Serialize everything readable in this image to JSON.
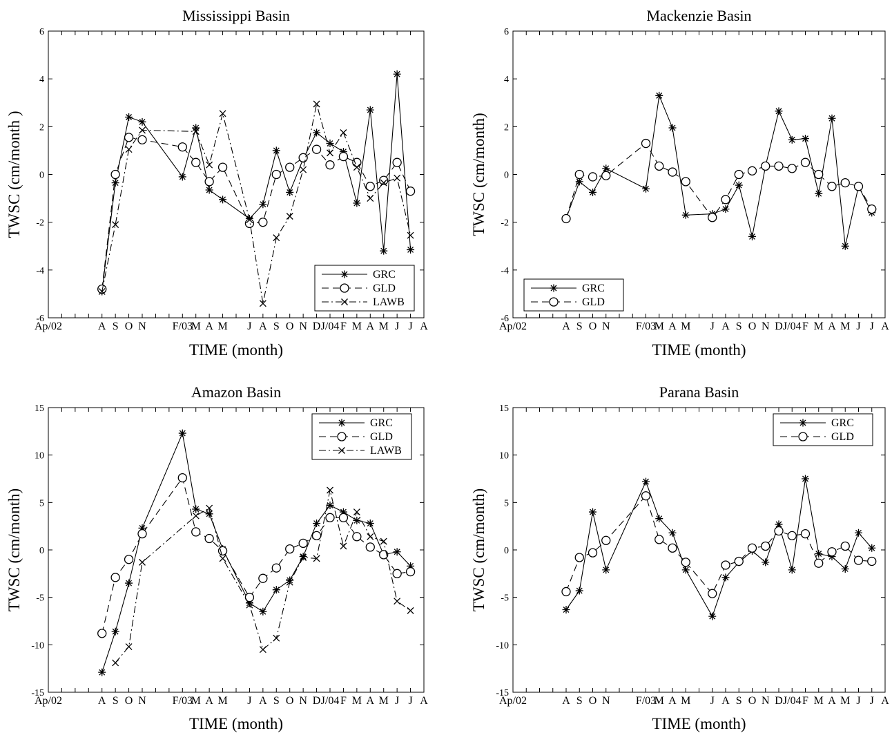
{
  "month_labels": [
    "Ap/02",
    "",
    "",
    "",
    "A",
    "S",
    "O",
    "N",
    "",
    "",
    "F/03",
    "M",
    "A",
    "M",
    "",
    "J",
    "A",
    "S",
    "O",
    "N",
    "D",
    "J/04",
    "F",
    "M",
    "A",
    "M",
    "J",
    "J",
    "A"
  ],
  "series_styles": {
    "GRC": {
      "dash": "",
      "marker": "asterisk"
    },
    "GLD": {
      "dash": "10,6",
      "marker": "circle"
    },
    "LAWB": {
      "dash": "10,4,2,4",
      "marker": "x"
    }
  },
  "chart_data": [
    {
      "type": "line",
      "title": "Mississippi Basin",
      "xlabel": "TIME (month)",
      "ylabel": "TWSC (cm/month )",
      "ylim": [
        -6,
        6
      ],
      "yticks": [
        -6,
        -4,
        -2,
        0,
        2,
        4,
        6
      ],
      "legend": [
        "GRC",
        "GLD",
        "LAWB"
      ],
      "legend_position": "bottom-right",
      "series": [
        {
          "name": "GRC",
          "x": [
            4,
            5,
            6,
            7,
            10,
            11,
            12,
            13,
            15,
            16,
            17,
            18,
            19,
            20,
            21,
            22,
            23,
            24,
            25,
            26,
            27
          ],
          "y": [
            -4.9,
            -0.35,
            2.4,
            2.2,
            -0.1,
            1.95,
            -0.65,
            -1.05,
            -1.85,
            -1.25,
            1.0,
            -0.75,
            0.65,
            1.75,
            1.3,
            0.95,
            -1.2,
            2.7,
            -3.2,
            4.2,
            -3.15
          ]
        },
        {
          "name": "GLD",
          "x": [
            4,
            5,
            6,
            7,
            10,
            11,
            12,
            13,
            15,
            16,
            17,
            18,
            19,
            20,
            21,
            22,
            23,
            24,
            25,
            26,
            27
          ],
          "y": [
            -4.8,
            0.0,
            1.55,
            1.45,
            1.15,
            0.5,
            -0.3,
            0.3,
            -2.05,
            -2.0,
            0.0,
            0.3,
            0.7,
            1.05,
            0.4,
            0.75,
            0.5,
            -0.5,
            -0.25,
            0.5,
            -0.7
          ]
        },
        {
          "name": "LAWB",
          "x": [
            4,
            5,
            6,
            7,
            11,
            12,
            13,
            15,
            16,
            17,
            18,
            19,
            20,
            21,
            22,
            23,
            24,
            25,
            26,
            27
          ],
          "y": [
            -4.9,
            -2.1,
            1.05,
            1.85,
            1.8,
            0.4,
            2.55,
            -1.9,
            -5.4,
            -2.65,
            -1.75,
            0.2,
            2.95,
            0.9,
            1.75,
            0.3,
            -1.0,
            -0.35,
            -0.15,
            -2.55
          ]
        }
      ]
    },
    {
      "type": "line",
      "title": "Mackenzie Basin",
      "xlabel": "TIME (month)",
      "ylabel": "TWSC (cm/month)",
      "ylim": [
        -6,
        6
      ],
      "yticks": [
        -6,
        -4,
        -2,
        0,
        2,
        4,
        6
      ],
      "legend": [
        "GRC",
        "GLD"
      ],
      "legend_position": "bottom-left",
      "series": [
        {
          "name": "GRC",
          "x": [
            4,
            5,
            6,
            7,
            10,
            11,
            12,
            13,
            15,
            16,
            17,
            18,
            19,
            20,
            21,
            22,
            23,
            24,
            25,
            26,
            27
          ],
          "y": [
            -1.85,
            -0.3,
            -0.75,
            0.25,
            -0.6,
            3.3,
            1.95,
            -1.7,
            -1.65,
            -1.45,
            -0.45,
            -2.6,
            0.35,
            2.65,
            1.45,
            1.5,
            -0.8,
            2.35,
            -3.0,
            -0.5,
            -1.6
          ]
        },
        {
          "name": "GLD",
          "x": [
            4,
            5,
            6,
            7,
            10,
            11,
            12,
            13,
            15,
            16,
            17,
            18,
            19,
            20,
            21,
            22,
            23,
            24,
            25,
            26,
            27
          ],
          "y": [
            -1.85,
            0.0,
            -0.1,
            -0.05,
            1.3,
            0.35,
            0.1,
            -0.3,
            -1.8,
            -1.05,
            0.0,
            0.15,
            0.35,
            0.35,
            0.25,
            0.5,
            0.0,
            -0.5,
            -0.35,
            -0.5,
            -1.45
          ]
        }
      ]
    },
    {
      "type": "line",
      "title": "Amazon Basin",
      "xlabel": "TIME (month)",
      "ylabel": "TWSC (cm/month)",
      "ylim": [
        -15,
        15
      ],
      "yticks": [
        -15,
        -10,
        -5,
        0,
        5,
        10,
        15
      ],
      "legend": [
        "GRC",
        "GLD",
        "LAWB"
      ],
      "legend_position": "top-right",
      "series": [
        {
          "name": "GRC",
          "x": [
            4,
            5,
            6,
            7,
            10,
            11,
            12,
            13,
            15,
            16,
            17,
            18,
            19,
            20,
            21,
            22,
            23,
            24,
            25,
            26,
            27
          ],
          "y": [
            -12.9,
            -8.6,
            -3.5,
            2.3,
            12.3,
            4.3,
            3.8,
            0.1,
            -5.6,
            -6.5,
            -4.2,
            -3.2,
            -0.7,
            2.8,
            4.7,
            4.0,
            3.1,
            2.8,
            -0.5,
            -0.2,
            -1.7
          ]
        },
        {
          "name": "GLD",
          "x": [
            4,
            5,
            6,
            7,
            10,
            11,
            12,
            13,
            15,
            16,
            17,
            18,
            19,
            20,
            21,
            22,
            23,
            24,
            25,
            26,
            27
          ],
          "y": [
            -8.8,
            -2.9,
            -1.0,
            1.7,
            7.6,
            1.9,
            1.2,
            -0.1,
            -5.0,
            -3.0,
            -1.9,
            0.1,
            0.7,
            1.5,
            3.4,
            3.4,
            1.4,
            0.3,
            -0.5,
            -2.5,
            -2.3
          ]
        },
        {
          "name": "LAWB",
          "x": [
            5,
            6,
            7,
            11,
            12,
            13,
            15,
            16,
            17,
            18,
            19,
            20,
            21,
            22,
            23,
            24,
            25,
            26,
            27
          ],
          "y": [
            -11.9,
            -10.2,
            -1.3,
            3.6,
            4.4,
            -0.9,
            -5.8,
            -10.5,
            -9.3,
            -3.4,
            -0.8,
            -0.9,
            6.3,
            0.4,
            4.0,
            1.4,
            0.9,
            -5.4,
            -6.4
          ]
        }
      ]
    },
    {
      "type": "line",
      "title": "Parana Basin",
      "xlabel": "TIME (month)",
      "ylabel": "TWSC (cm/month)",
      "ylim": [
        -15,
        15
      ],
      "yticks": [
        -15,
        -10,
        -5,
        0,
        5,
        10,
        15
      ],
      "legend": [
        "GRC",
        "GLD"
      ],
      "legend_position": "top-right",
      "series": [
        {
          "name": "GRC",
          "x": [
            4,
            5,
            6,
            7,
            10,
            11,
            12,
            13,
            15,
            16,
            17,
            18,
            19,
            20,
            21,
            22,
            23,
            24,
            25,
            26,
            27
          ],
          "y": [
            -6.3,
            -4.3,
            4.0,
            -2.1,
            7.2,
            3.3,
            1.8,
            -2.1,
            -7.0,
            -2.9,
            -1.3,
            -0.1,
            -1.3,
            2.7,
            -2.1,
            7.5,
            -0.4,
            -0.7,
            -2.0,
            1.8,
            0.2
          ]
        },
        {
          "name": "GLD",
          "x": [
            4,
            5,
            6,
            7,
            10,
            11,
            12,
            13,
            15,
            16,
            17,
            18,
            19,
            20,
            21,
            22,
            23,
            24,
            25,
            26,
            27
          ],
          "y": [
            -4.4,
            -0.8,
            -0.3,
            1.0,
            5.7,
            1.1,
            0.2,
            -1.3,
            -4.6,
            -1.6,
            -1.2,
            0.2,
            0.4,
            2.0,
            1.5,
            1.7,
            -1.4,
            -0.2,
            0.4,
            -1.1,
            -1.2
          ]
        }
      ]
    }
  ]
}
